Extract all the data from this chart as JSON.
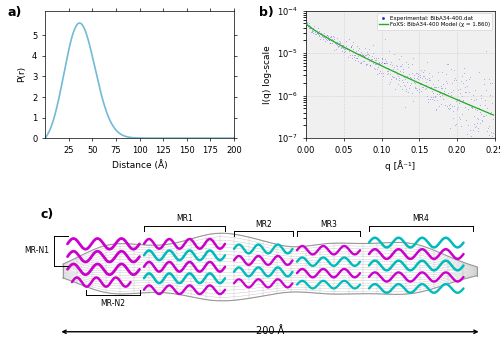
{
  "panel_a": {
    "label": "a)",
    "xlabel": "Distance (Å)",
    "ylabel": "P(r)",
    "xlim": [
      0,
      200
    ],
    "ylim": [
      0,
      6.2
    ],
    "xticks": [
      25,
      50,
      75,
      100,
      125,
      150,
      175,
      200
    ],
    "yticks": [
      0,
      1,
      2,
      3,
      4,
      5
    ],
    "curve_color": "#74b9d6",
    "peak_x": 28,
    "peak_y": 5.6,
    "Dmax": 200
  },
  "panel_b": {
    "label": "b)",
    "xlabel": "q [Å⁻¹]",
    "ylabel": "I(q) log-scale",
    "xlim": [
      0.0,
      0.25
    ],
    "ylim_log": [
      -7,
      -4
    ],
    "xticks": [
      0.0,
      0.05,
      0.1,
      0.15,
      0.2,
      0.25
    ],
    "exp_color": "#2222cc",
    "foxs_color": "#22aa22",
    "legend_exp": "Experimental: BibA34-400.dat",
    "legend_foxs": "FoXS: BibA34-400 Model (χ = 1.860)"
  },
  "panel_c": {
    "label": "c)",
    "scale_label": "200 Å",
    "mesh_color": "#999999",
    "magenta_color": "#cc00cc",
    "cyan_color": "#00bbbb"
  }
}
